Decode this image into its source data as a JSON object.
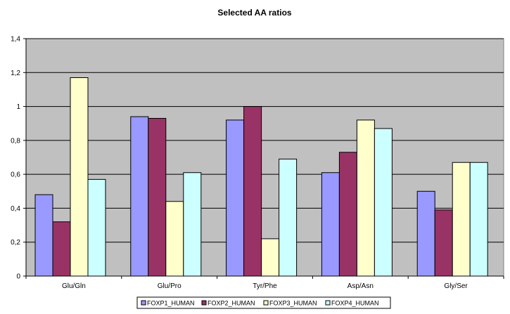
{
  "chart_data": {
    "type": "bar",
    "title": "Selected AA ratios",
    "xlabel": "",
    "ylabel": "",
    "ylim": [
      0,
      1.4
    ],
    "yticks": [
      "0",
      "0,2",
      "0,4",
      "0,6",
      "0,8",
      "1",
      "1,2",
      "1,4"
    ],
    "ytick_values": [
      0,
      0.2,
      0.4,
      0.6,
      0.8,
      1.0,
      1.2,
      1.4
    ],
    "categories": [
      "Glu/Gln",
      "Glu/Pro",
      "Tyr/Phe",
      "Asp/Asn",
      "Gly/Ser"
    ],
    "series": [
      {
        "name": "FOXP1_HUMAN",
        "color": "#9999ff",
        "values": [
          0.48,
          0.94,
          0.92,
          0.61,
          0.5
        ]
      },
      {
        "name": "FOXP2_HUMAN",
        "color": "#993366",
        "values": [
          0.32,
          0.93,
          1.0,
          0.73,
          0.39
        ]
      },
      {
        "name": "FOXP3_HUMAN",
        "color": "#ffffcc",
        "values": [
          1.17,
          0.44,
          0.22,
          0.92,
          0.67
        ]
      },
      {
        "name": "FOXP4_HUMAN",
        "color": "#ccffff",
        "values": [
          0.57,
          0.61,
          0.69,
          0.87,
          0.67
        ]
      }
    ],
    "grid": true,
    "plot_background": "#c0c0c0",
    "legend_position": "bottom"
  }
}
